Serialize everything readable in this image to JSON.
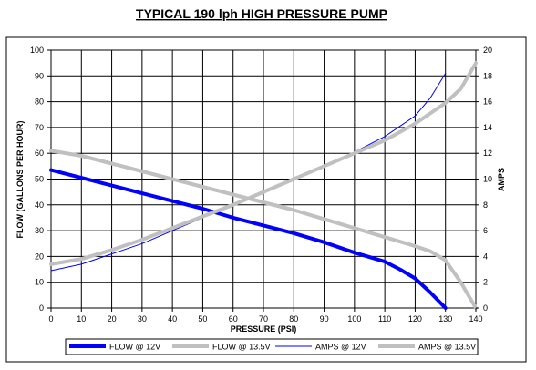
{
  "chart_data": {
    "type": "line",
    "title": "TYPICAL 190 lph HIGH PRESSURE PUMP",
    "xlabel": "PRESSURE (PSI)",
    "ylabel": "FLOW (GALLONS PER HOUR)",
    "y2label": "AMPS",
    "xlim": [
      0,
      140
    ],
    "ylim": [
      0,
      100
    ],
    "y2lim": [
      0,
      20
    ],
    "xticks": [
      "0",
      "10",
      "20",
      "30",
      "40",
      "50",
      "60",
      "70",
      "80",
      "90",
      "100",
      "110",
      "120",
      "130",
      "140"
    ],
    "yticks": [
      "0",
      "10",
      "20",
      "30",
      "40",
      "50",
      "60",
      "70",
      "80",
      "90",
      "100"
    ],
    "y2ticks": [
      "0",
      "2",
      "4",
      "6",
      "8",
      "10",
      "12",
      "14",
      "16",
      "18",
      "20"
    ],
    "grid": true,
    "legend_position": "bottom",
    "series": [
      {
        "name": "FLOW @ 12V",
        "axis": "left",
        "color": "#0000ff",
        "style": "thick",
        "x": [
          0,
          10,
          20,
          30,
          40,
          50,
          60,
          70,
          80,
          90,
          100,
          110,
          115,
          120,
          125,
          130
        ],
        "y": [
          53.5,
          50.5,
          47.5,
          44.5,
          41.5,
          38.5,
          35,
          32,
          29,
          25.5,
          21.5,
          18,
          15,
          11.5,
          6,
          0
        ]
      },
      {
        "name": "FLOW @ 13.5V",
        "axis": "left",
        "color": "#c0c0c0",
        "style": "thick",
        "x": [
          0,
          10,
          20,
          30,
          40,
          50,
          60,
          70,
          80,
          90,
          100,
          110,
          120,
          125,
          130,
          135,
          140
        ],
        "y": [
          61,
          59,
          56,
          53,
          50,
          47,
          44,
          41,
          38,
          34.5,
          31,
          27.5,
          24,
          22,
          18.5,
          10,
          0
        ]
      },
      {
        "name": "AMPS @ 12V",
        "axis": "right",
        "color": "#0000ff",
        "style": "thin",
        "x": [
          0,
          10,
          20,
          30,
          40,
          50,
          60,
          70,
          80,
          90,
          100,
          110,
          120,
          125,
          130
        ],
        "y": [
          2.9,
          3.4,
          4.2,
          5,
          6,
          7,
          7.9,
          8.9,
          10,
          11,
          12.1,
          13.3,
          14.9,
          16.3,
          18.2
        ]
      },
      {
        "name": "AMPS @ 13.5V",
        "axis": "right",
        "color": "#c0c0c0",
        "style": "thick",
        "x": [
          0,
          10,
          20,
          30,
          40,
          50,
          60,
          70,
          80,
          90,
          100,
          110,
          120,
          130,
          135,
          140
        ],
        "y": [
          3.4,
          3.8,
          4.5,
          5.3,
          6.2,
          7.1,
          8,
          9,
          10,
          11,
          12,
          13,
          14.3,
          15.9,
          17,
          19
        ]
      }
    ]
  }
}
